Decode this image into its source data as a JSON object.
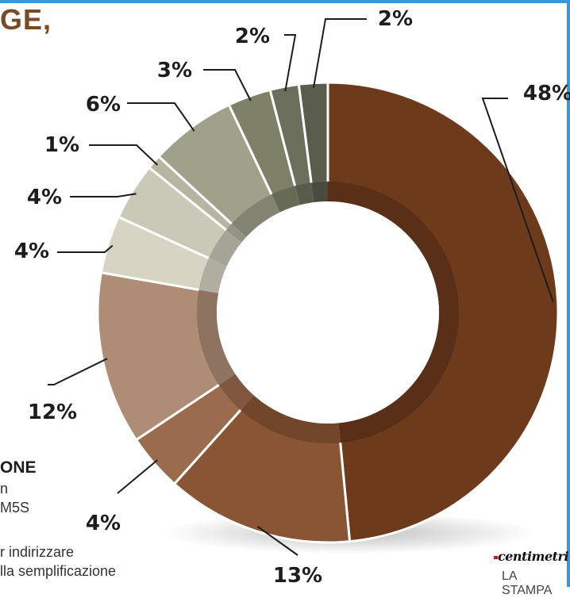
{
  "headline": "GE,",
  "legend": {
    "heading": "ONE",
    "line1": "n",
    "line2": "M5S",
    "line3": "r indirizzare",
    "line4": "lla semplificazione"
  },
  "brand": "centimetri",
  "publisher": "LA STAMPA",
  "chart_data": {
    "type": "pie",
    "style": "donut",
    "slices": [
      {
        "label": "48%",
        "value": 48,
        "color": "#6d3a1c"
      },
      {
        "label": "13%",
        "value": 13,
        "color": "#8a5535"
      },
      {
        "label": "4%",
        "value": 4,
        "color": "#9b6b4d"
      },
      {
        "label": "12%",
        "value": 12,
        "color": "#ae8c76"
      },
      {
        "label": "4%",
        "value": 4,
        "color": "#d6d4c2"
      },
      {
        "label": "4%",
        "value": 4,
        "color": "#c9c9b7"
      },
      {
        "label": "1%",
        "value": 1,
        "color": "#b5b5a1"
      },
      {
        "label": "6%",
        "value": 6,
        "color": "#9fa18a"
      },
      {
        "label": "3%",
        "value": 3,
        "color": "#7e8168"
      },
      {
        "label": "2%",
        "value": 2,
        "color": "#6c6f5b"
      },
      {
        "label": "2%",
        "value": 2,
        "color": "#5a5c4c"
      }
    ],
    "start": "top",
    "direction": "clockwise",
    "legend": "none"
  }
}
